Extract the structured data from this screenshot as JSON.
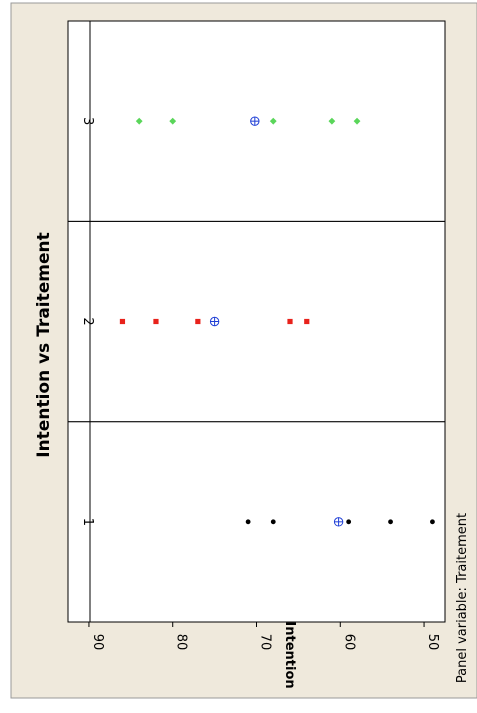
{
  "chart_data": {
    "type": "scatter",
    "title": "Intention vs Traitement",
    "ylabel": "Intention",
    "panel_note": "Panel variable: Traitement",
    "ylim": [
      47.5,
      92.5
    ],
    "yticks": [
      90,
      80,
      70,
      60,
      50
    ],
    "panels": [
      {
        "label": "1",
        "color": "#000000",
        "marker": "circle",
        "values": [
          71,
          68,
          59,
          54,
          49
        ],
        "mean": 60.2
      },
      {
        "label": "2",
        "color": "#e8221b",
        "marker": "square",
        "values": [
          86,
          82,
          77,
          66,
          64
        ],
        "mean": 75
      },
      {
        "label": "3",
        "color": "#5ad65a",
        "marker": "diamond",
        "values": [
          84,
          80,
          68,
          61,
          58
        ],
        "mean": 70.2
      }
    ],
    "mean_marker_color": "#1f3fd6",
    "background_color": "#efe9dc",
    "grid": false
  }
}
